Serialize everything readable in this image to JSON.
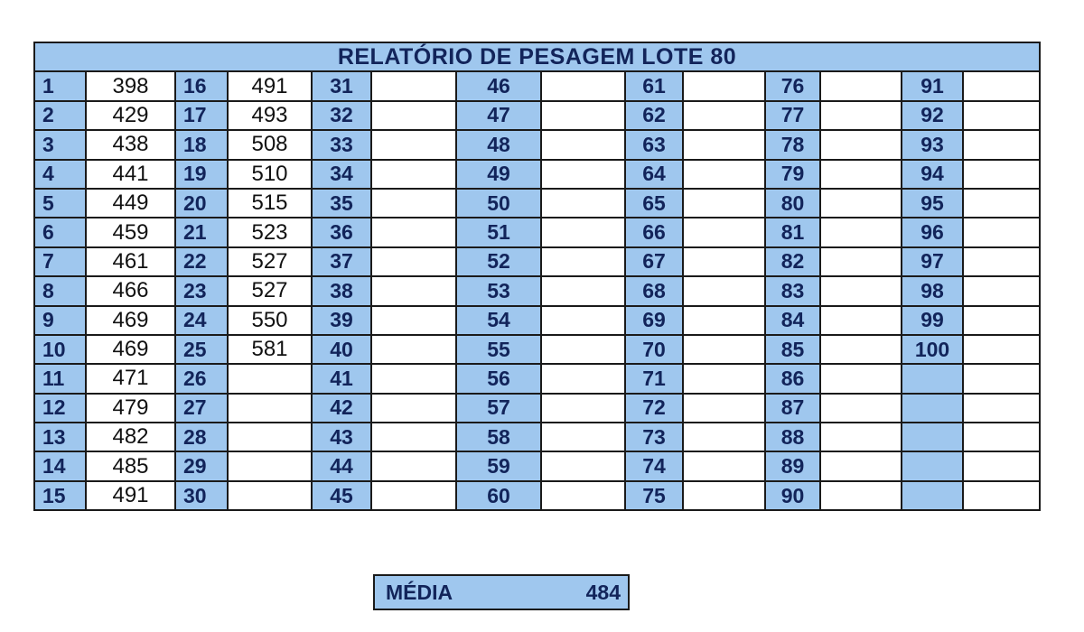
{
  "title": "RELATÓRIO DE PESAGEM LOTE 80",
  "columns": [
    {
      "indices": [
        "1",
        "2",
        "3",
        "4",
        "5",
        "6",
        "7",
        "8",
        "9",
        "10",
        "11",
        "12",
        "13",
        "14",
        "15"
      ],
      "values": [
        "398",
        "429",
        "438",
        "441",
        "449",
        "459",
        "461",
        "466",
        "469",
        "469",
        "471",
        "479",
        "482",
        "485",
        "491"
      ]
    },
    {
      "indices": [
        "16",
        "17",
        "18",
        "19",
        "20",
        "21",
        "22",
        "23",
        "24",
        "25",
        "26",
        "27",
        "28",
        "29",
        "30"
      ],
      "values": [
        "491",
        "493",
        "508",
        "510",
        "515",
        "523",
        "527",
        "527",
        "550",
        "581",
        "",
        "",
        "",
        "",
        ""
      ]
    },
    {
      "indices": [
        "31",
        "32",
        "33",
        "34",
        "35",
        "36",
        "37",
        "38",
        "39",
        "40",
        "41",
        "42",
        "43",
        "44",
        "45"
      ],
      "values": [
        "",
        "",
        "",
        "",
        "",
        "",
        "",
        "",
        "",
        "",
        "",
        "",
        "",
        "",
        ""
      ]
    },
    {
      "indices": [
        "46",
        "47",
        "48",
        "49",
        "50",
        "51",
        "52",
        "53",
        "54",
        "55",
        "56",
        "57",
        "58",
        "59",
        "60"
      ],
      "values": [
        "",
        "",
        "",
        "",
        "",
        "",
        "",
        "",
        "",
        "",
        "",
        "",
        "",
        "",
        ""
      ]
    },
    {
      "indices": [
        "61",
        "62",
        "63",
        "64",
        "65",
        "66",
        "67",
        "68",
        "69",
        "70",
        "71",
        "72",
        "73",
        "74",
        "75"
      ],
      "values": [
        "",
        "",
        "",
        "",
        "",
        "",
        "",
        "",
        "",
        "",
        "",
        "",
        "",
        "",
        ""
      ]
    },
    {
      "indices": [
        "76",
        "77",
        "78",
        "79",
        "80",
        "81",
        "82",
        "83",
        "84",
        "85",
        "86",
        "87",
        "88",
        "89",
        "90"
      ],
      "values": [
        "",
        "",
        "",
        "",
        "",
        "",
        "",
        "",
        "",
        "",
        "",
        "",
        "",
        "",
        ""
      ]
    },
    {
      "indices": [
        "91",
        "92",
        "93",
        "94",
        "95",
        "96",
        "97",
        "98",
        "99",
        "100",
        "",
        "",
        "",
        "",
        ""
      ],
      "values": [
        "",
        "",
        "",
        "",
        "",
        "",
        "",
        "",
        "",
        "",
        "",
        "",
        "",
        "",
        ""
      ]
    }
  ],
  "summary": {
    "label": "MÉDIA",
    "value": "484"
  },
  "colors": {
    "header_fill": "#9fc7ee",
    "text_dark_blue": "#12245a",
    "border": "#1a1a1a"
  }
}
